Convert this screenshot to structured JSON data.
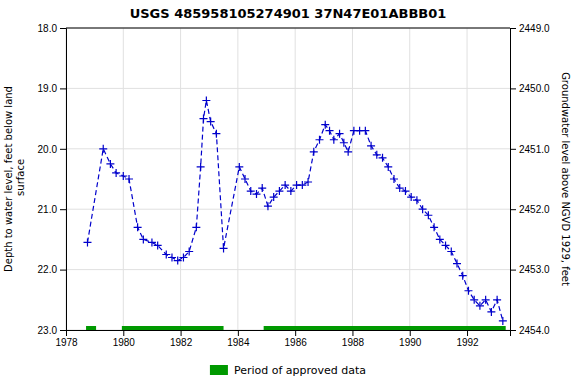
{
  "chart_data": {
    "type": "line",
    "title": "USGS 485958105274901 37N47E01ABBB01",
    "y_label": "Depth to water level, feet below land\n surface",
    "y2_label": "Groundwater level above NGVD 1929, feet",
    "xlim": [
      1978,
      1993.5
    ],
    "xticks": [
      1978,
      1980,
      1982,
      1984,
      1986,
      1988,
      1990,
      1992
    ],
    "ylim": [
      23.0,
      18.0
    ],
    "yticks": [
      {
        "value": 18.0,
        "label": "18.0"
      },
      {
        "value": 19.0,
        "label": "19.0"
      },
      {
        "value": 20.0,
        "label": "20.0"
      },
      {
        "value": 21.0,
        "label": "21.0"
      },
      {
        "value": 22.0,
        "label": "22.0"
      },
      {
        "value": 23.0,
        "label": "23.0"
      }
    ],
    "y2lim": [
      2454.0,
      2449.0
    ],
    "y2ticks": [
      {
        "value": 2454.0,
        "label": "2454.0"
      },
      {
        "value": 2453.0,
        "label": "2453.0"
      },
      {
        "value": 2452.0,
        "label": "2452.0"
      },
      {
        "value": 2451.0,
        "label": "2451.0"
      },
      {
        "value": 2450.0,
        "label": "2450.0"
      },
      {
        "value": 2449.0,
        "label": "2449.0"
      }
    ],
    "grid": true,
    "color": "#0000cc",
    "marker": "plus",
    "line_style": "dashed",
    "x": [
      1978.75,
      1979.3,
      1979.55,
      1979.75,
      1980.0,
      1980.2,
      1980.5,
      1980.7,
      1981.0,
      1981.2,
      1981.5,
      1981.7,
      1981.9,
      1982.1,
      1982.3,
      1982.55,
      1982.7,
      1982.8,
      1982.9,
      1983.05,
      1983.25,
      1983.5,
      1984.05,
      1984.25,
      1984.45,
      1984.65,
      1984.85,
      1985.05,
      1985.25,
      1985.45,
      1985.65,
      1985.85,
      1986.05,
      1986.25,
      1986.45,
      1986.65,
      1986.85,
      1987.05,
      1987.2,
      1987.35,
      1987.55,
      1987.7,
      1987.85,
      1988.05,
      1988.25,
      1988.45,
      1988.65,
      1988.85,
      1989.05,
      1989.25,
      1989.45,
      1989.65,
      1989.85,
      1990.05,
      1990.25,
      1990.45,
      1990.65,
      1990.85,
      1991.05,
      1991.25,
      1991.45,
      1991.65,
      1991.85,
      1992.05,
      1992.25,
      1992.45,
      1992.65,
      1992.85,
      1993.05,
      1993.25
    ],
    "values": [
      21.55,
      20.0,
      20.25,
      20.4,
      20.45,
      20.5,
      21.3,
      21.5,
      21.55,
      21.6,
      21.75,
      21.8,
      21.85,
      21.8,
      21.7,
      21.3,
      20.3,
      19.5,
      19.2,
      19.55,
      19.75,
      21.65,
      20.3,
      20.5,
      20.7,
      20.75,
      20.65,
      20.95,
      20.8,
      20.7,
      20.6,
      20.7,
      20.6,
      20.6,
      20.55,
      20.05,
      19.85,
      19.6,
      19.7,
      19.85,
      19.75,
      19.9,
      20.05,
      19.7,
      19.7,
      19.7,
      19.95,
      20.1,
      20.15,
      20.3,
      20.5,
      20.65,
      20.7,
      20.8,
      20.85,
      21.0,
      21.1,
      21.3,
      21.5,
      21.6,
      21.7,
      21.9,
      22.1,
      22.35,
      22.5,
      22.6,
      22.5,
      22.7,
      22.5,
      22.85
    ],
    "periods": {
      "name": "Period of approved data",
      "color": "#009900",
      "values": [
        [
          1978.7,
          1979.05
        ],
        [
          1979.95,
          1983.5
        ],
        [
          1984.9,
          1993.35
        ]
      ]
    }
  }
}
